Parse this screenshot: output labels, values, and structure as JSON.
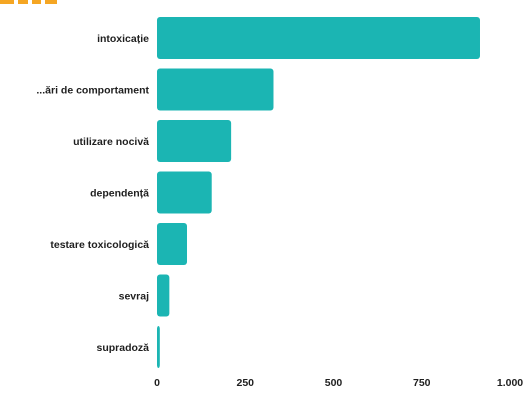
{
  "chart_data": {
    "type": "bar",
    "orientation": "horizontal",
    "categories": [
      "intoxicație",
      "...ări de comportament",
      "utilizare nocivă",
      "dependență",
      "testare toxicologică",
      "sevraj",
      "supradoză"
    ],
    "values": [
      915,
      330,
      210,
      155,
      85,
      35,
      8
    ],
    "xlim": [
      0,
      1000
    ],
    "xticks": [
      0,
      250,
      500,
      750,
      1000
    ],
    "xtick_labels": [
      "0",
      "250",
      "500",
      "750",
      "1.000"
    ],
    "bar_color": "#1bb5b3",
    "grid": false,
    "title": "",
    "xlabel": "",
    "ylabel": ""
  }
}
